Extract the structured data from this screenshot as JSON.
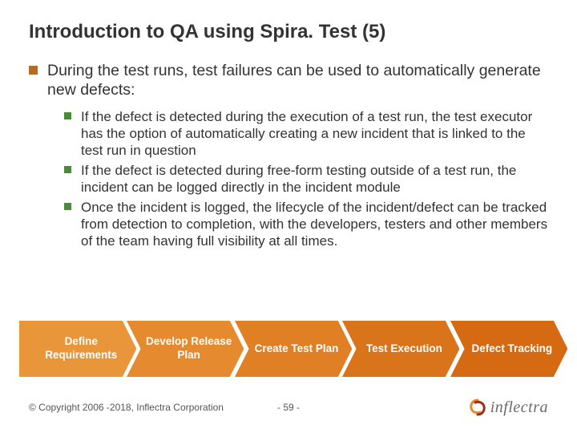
{
  "title": "Introduction to QA using Spira. Test (5)",
  "bullet_color_main": "#b36b2a",
  "bullet_color_sub": "#4a8a3a",
  "main_bullet": "During the test runs, test failures can be used to automatically generate new defects:",
  "sub_bullets": [
    "If the defect is detected during the execution of a test run, the test executor has the option of automatically creating a new incident that is linked to the test run in question",
    "If the defect is detected during free-form testing outside of a test run, the incident can be logged directly in the incident module",
    "Once the incident is logged, the lifecycle of the incident/defect can be tracked from detection to completion, with the developers, testers and other members of the team having full visibility at all times."
  ],
  "process": {
    "steps": [
      "Define Requirements",
      "Develop Release Plan",
      "Create Test Plan",
      "Test Execution",
      "Defect Tracking"
    ],
    "colors": [
      "#e9953a",
      "#e58a2e",
      "#e07f24",
      "#da741b",
      "#d56a12"
    ]
  },
  "copyright": "© Copyright 2006 -2018, Inflectra Corporation",
  "page_num": "- 59 -",
  "logo_text": "inflectra",
  "logo_base": "#e88a2a",
  "logo_accent": "#9a2f1a"
}
